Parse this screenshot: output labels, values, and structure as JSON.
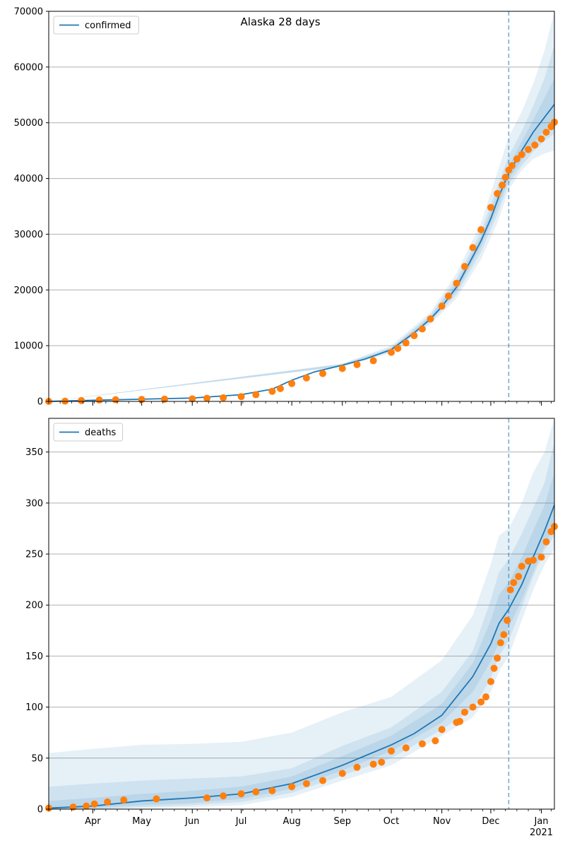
{
  "figure_title": "Alaska 28 days",
  "colors": {
    "model": "#1f77b4",
    "observed": "#ff7f0e",
    "band": "#1f77b4",
    "grid": "#b0b0b0",
    "forecast_line": "#1f77b4"
  },
  "chart_data": [
    {
      "type": "line",
      "title": "Alaska 28 days",
      "legend": {
        "label": "confirmed",
        "position": "top-left"
      },
      "grid": "horizontal",
      "ylim": [
        0,
        70000
      ],
      "yticks": [
        0,
        10000,
        20000,
        30000,
        40000,
        50000,
        60000,
        70000
      ],
      "xlim": [
        "2020-03-05",
        "2021-01-09"
      ],
      "xticks": [
        {
          "date": "2020-04-01",
          "label": ""
        },
        {
          "date": "2020-05-01",
          "label": ""
        },
        {
          "date": "2020-06-01",
          "label": ""
        },
        {
          "date": "2020-07-01",
          "label": ""
        },
        {
          "date": "2020-08-01",
          "label": ""
        },
        {
          "date": "2020-09-01",
          "label": ""
        },
        {
          "date": "2020-10-01",
          "label": ""
        },
        {
          "date": "2020-11-01",
          "label": ""
        },
        {
          "date": "2020-12-01",
          "label": ""
        },
        {
          "date": "2021-01-01",
          "label": ""
        }
      ],
      "forecast_start": "2020-12-12",
      "model": {
        "x": [
          "2020-03-05",
          "2020-04-01",
          "2020-05-01",
          "2020-06-01",
          "2020-07-01",
          "2020-07-20",
          "2020-08-01",
          "2020-08-15",
          "2020-09-01",
          "2020-09-15",
          "2020-10-01",
          "2020-10-15",
          "2020-10-25",
          "2020-11-01",
          "2020-11-10",
          "2020-11-20",
          "2020-11-25",
          "2020-12-01",
          "2020-12-06",
          "2020-12-12",
          "2020-12-20",
          "2020-12-27",
          "2021-01-03",
          "2021-01-09"
        ],
        "y": [
          0,
          200,
          400,
          600,
          1200,
          2200,
          3800,
          5300,
          6500,
          7600,
          9300,
          12300,
          14800,
          17000,
          20500,
          26000,
          28800,
          32800,
          36800,
          41000,
          45000,
          48300,
          51000,
          53300
        ]
      },
      "bands": [
        {
          "name": "outer",
          "x": [
            "2020-03-05",
            "2020-09-01",
            "2020-10-01",
            "2020-10-25",
            "2020-11-10",
            "2020-11-25",
            "2020-12-05",
            "2020-12-12",
            "2020-12-20",
            "2020-12-27",
            "2021-01-03",
            "2021-01-09"
          ],
          "upper": [
            0,
            6800,
            10000,
            16000,
            23000,
            32000,
            41000,
            47500,
            52000,
            57000,
            63000,
            70000
          ],
          "lower": [
            0,
            6200,
            8700,
            13800,
            18500,
            25500,
            32000,
            38000,
            41500,
            43500,
            44500,
            45000
          ]
        },
        {
          "name": "mid",
          "x": [
            "2020-03-05",
            "2020-09-01",
            "2020-10-01",
            "2020-10-25",
            "2020-11-10",
            "2020-11-25",
            "2020-12-05",
            "2020-12-12",
            "2020-12-20",
            "2020-12-27",
            "2021-01-03",
            "2021-01-09"
          ],
          "upper": [
            0,
            6700,
            9700,
            15500,
            22000,
            30500,
            38500,
            44000,
            48500,
            53000,
            58000,
            64000
          ],
          "lower": [
            0,
            6300,
            8900,
            14200,
            19200,
            26800,
            33500,
            39000,
            42300,
            44800,
            46800,
            48000
          ]
        },
        {
          "name": "inner",
          "x": [
            "2020-03-05",
            "2020-09-01",
            "2020-10-01",
            "2020-10-25",
            "2020-11-10",
            "2020-11-25",
            "2020-12-05",
            "2020-12-12",
            "2020-12-20",
            "2020-12-27",
            "2021-01-03",
            "2021-01-09"
          ],
          "upper": [
            0,
            6600,
            9500,
            15200,
            21300,
            29600,
            37200,
            42200,
            46600,
            50500,
            54500,
            58000
          ],
          "lower": [
            0,
            6400,
            9100,
            14500,
            19800,
            27800,
            34600,
            39800,
            43300,
            46200,
            48700,
            50500
          ]
        }
      ],
      "observed": {
        "x": [
          "2020-03-05",
          "2020-03-15",
          "2020-03-25",
          "2020-04-05",
          "2020-04-15",
          "2020-05-01",
          "2020-05-15",
          "2020-06-01",
          "2020-06-10",
          "2020-06-20",
          "2020-07-01",
          "2020-07-10",
          "2020-07-20",
          "2020-07-25",
          "2020-08-01",
          "2020-08-10",
          "2020-08-20",
          "2020-09-01",
          "2020-09-10",
          "2020-09-20",
          "2020-10-01",
          "2020-10-05",
          "2020-10-10",
          "2020-10-15",
          "2020-10-20",
          "2020-10-25",
          "2020-11-01",
          "2020-11-05",
          "2020-11-10",
          "2020-11-15",
          "2020-11-20",
          "2020-11-25",
          "2020-12-01",
          "2020-12-05",
          "2020-12-08",
          "2020-12-10",
          "2020-12-12",
          "2020-12-14",
          "2020-12-17",
          "2020-12-20",
          "2020-12-24",
          "2020-12-28",
          "2021-01-01",
          "2021-01-04",
          "2021-01-07",
          "2021-01-09"
        ],
        "y": [
          0,
          50,
          150,
          250,
          300,
          350,
          400,
          450,
          550,
          650,
          850,
          1200,
          1800,
          2300,
          3200,
          4200,
          5000,
          5900,
          6600,
          7300,
          8800,
          9500,
          10500,
          11800,
          13000,
          14800,
          17100,
          18900,
          21200,
          24200,
          27600,
          30800,
          34800,
          37300,
          38800,
          40200,
          41500,
          42300,
          43500,
          44300,
          45200,
          46000,
          47100,
          48300,
          49300,
          50100
        ]
      }
    },
    {
      "type": "line",
      "title": "",
      "legend": {
        "label": "deaths",
        "position": "top-left"
      },
      "grid": "horizontal",
      "ylim": [
        0,
        383
      ],
      "yticks": [
        0,
        50,
        100,
        150,
        200,
        250,
        300,
        350
      ],
      "xlim": [
        "2020-03-05",
        "2021-01-09"
      ],
      "xticks": [
        {
          "date": "2020-04-01",
          "label": "Apr"
        },
        {
          "date": "2020-05-01",
          "label": "May"
        },
        {
          "date": "2020-06-01",
          "label": "Jun"
        },
        {
          "date": "2020-07-01",
          "label": "Jul"
        },
        {
          "date": "2020-08-01",
          "label": "Aug"
        },
        {
          "date": "2020-09-01",
          "label": "Sep"
        },
        {
          "date": "2020-10-01",
          "label": "Oct"
        },
        {
          "date": "2020-11-01",
          "label": "Nov"
        },
        {
          "date": "2020-12-01",
          "label": "Dec"
        },
        {
          "date": "2021-01-01",
          "label": "Jan"
        }
      ],
      "year_label": "2021",
      "forecast_start": "2020-12-12",
      "model": {
        "x": [
          "2020-03-05",
          "2020-04-01",
          "2020-05-01",
          "2020-06-01",
          "2020-07-01",
          "2020-08-01",
          "2020-09-01",
          "2020-10-01",
          "2020-10-15",
          "2020-11-01",
          "2020-11-10",
          "2020-11-20",
          "2020-12-01",
          "2020-12-06",
          "2020-12-12",
          "2020-12-20",
          "2020-12-27",
          "2021-01-03",
          "2021-01-09"
        ],
        "y": [
          1,
          3,
          8,
          11,
          15,
          25,
          43,
          63,
          74,
          92,
          110,
          130,
          162,
          182,
          196,
          220,
          247,
          273,
          298
        ]
      },
      "bands": [
        {
          "name": "outer",
          "x": [
            "2020-03-05",
            "2020-04-01",
            "2020-05-01",
            "2020-06-01",
            "2020-07-01",
            "2020-08-01",
            "2020-09-01",
            "2020-10-01",
            "2020-11-01",
            "2020-11-20",
            "2020-12-01",
            "2020-12-06",
            "2020-12-12",
            "2020-12-20",
            "2020-12-27",
            "2021-01-03",
            "2021-01-09"
          ],
          "upper": [
            55,
            59,
            63,
            64,
            66,
            75,
            95,
            110,
            146,
            190,
            240,
            268,
            275,
            300,
            330,
            350,
            383
          ],
          "lower": [
            0,
            0,
            1,
            2,
            4,
            12,
            28,
            43,
            72,
            90,
            115,
            135,
            150,
            185,
            215,
            240,
            255
          ]
        },
        {
          "name": "mid",
          "x": [
            "2020-03-05",
            "2020-04-01",
            "2020-05-01",
            "2020-06-01",
            "2020-07-01",
            "2020-08-01",
            "2020-09-01",
            "2020-10-01",
            "2020-11-01",
            "2020-11-20",
            "2020-12-01",
            "2020-12-06",
            "2020-12-12",
            "2020-12-20",
            "2020-12-27",
            "2021-01-03",
            "2021-01-09"
          ],
          "upper": [
            22,
            25,
            28,
            30,
            32,
            40,
            62,
            80,
            115,
            155,
            205,
            232,
            245,
            270,
            295,
            320,
            360
          ],
          "lower": [
            0,
            0,
            2,
            4,
            7,
            16,
            33,
            50,
            78,
            98,
            128,
            150,
            165,
            198,
            228,
            254,
            268
          ]
        },
        {
          "name": "inner",
          "x": [
            "2020-03-05",
            "2020-04-01",
            "2020-05-01",
            "2020-06-01",
            "2020-07-01",
            "2020-08-01",
            "2020-09-01",
            "2020-10-01",
            "2020-11-01",
            "2020-11-20",
            "2020-12-01",
            "2020-12-06",
            "2020-12-12",
            "2020-12-20",
            "2020-12-27",
            "2021-01-03",
            "2021-01-09"
          ],
          "upper": [
            8,
            11,
            15,
            18,
            22,
            32,
            52,
            72,
            103,
            143,
            185,
            210,
            222,
            247,
            273,
            298,
            330
          ],
          "lower": [
            0,
            1,
            4,
            6,
            10,
            20,
            38,
            57,
            85,
            115,
            145,
            163,
            178,
            205,
            232,
            258,
            278
          ]
        }
      ],
      "observed": {
        "x": [
          "2020-03-05",
          "2020-03-20",
          "2020-03-28",
          "2020-04-02",
          "2020-04-10",
          "2020-04-20",
          "2020-05-10",
          "2020-06-10",
          "2020-06-20",
          "2020-07-01",
          "2020-07-10",
          "2020-07-20",
          "2020-08-01",
          "2020-08-10",
          "2020-08-20",
          "2020-09-01",
          "2020-09-10",
          "2020-09-20",
          "2020-09-25",
          "2020-10-01",
          "2020-10-10",
          "2020-10-20",
          "2020-10-28",
          "2020-11-01",
          "2020-11-10",
          "2020-11-12",
          "2020-11-15",
          "2020-11-20",
          "2020-11-25",
          "2020-11-28",
          "2020-12-01",
          "2020-12-03",
          "2020-12-05",
          "2020-12-07",
          "2020-12-09",
          "2020-12-11",
          "2020-12-13",
          "2020-12-15",
          "2020-12-18",
          "2020-12-20",
          "2020-12-24",
          "2020-12-27",
          "2021-01-01",
          "2021-01-04",
          "2021-01-07",
          "2021-01-09"
        ],
        "y": [
          1,
          2,
          3,
          5,
          7,
          9,
          10,
          11,
          13,
          15,
          17,
          18,
          22,
          25,
          28,
          35,
          41,
          44,
          46,
          57,
          60,
          64,
          67,
          78,
          85,
          86,
          95,
          100,
          105,
          110,
          125,
          138,
          148,
          163,
          171,
          185,
          215,
          222,
          228,
          238,
          243,
          244,
          247,
          262,
          272,
          277
        ]
      }
    }
  ]
}
